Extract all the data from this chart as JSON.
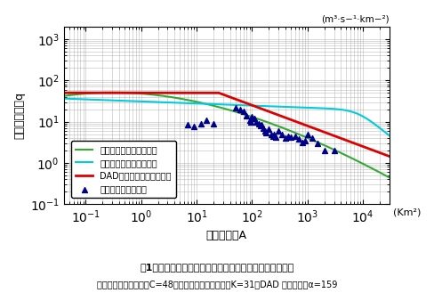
{
  "C": 48,
  "K": 31,
  "a": 159,
  "xlim": [
    0.04,
    30000
  ],
  "ylim": [
    0.1,
    2000
  ],
  "creager_color": "#33aa33",
  "grube_color": "#00ccdd",
  "dad_color": "#dd0000",
  "obs_color": "#000088",
  "legend_labels": [
    "クリーガ式の洪水比流量",
    "グループ式の洪水比流量",
    "DAD解析による洪水比流量",
    "洪水比流量の観測値"
  ],
  "xlabel": "流域面積　A",
  "ylabel": "洪水比流量　q",
  "ylabel2": "(m³·s−¹·km−²)",
  "title1": "図1　関東地方最大雨量による洪水比流量曲線式の評価例",
  "title2": "クリーガ式の地域係数C=48、グループ式の地域係数K=31、DAD 解析の定数α=159",
  "xlabel_unit": "(Km²)"
}
